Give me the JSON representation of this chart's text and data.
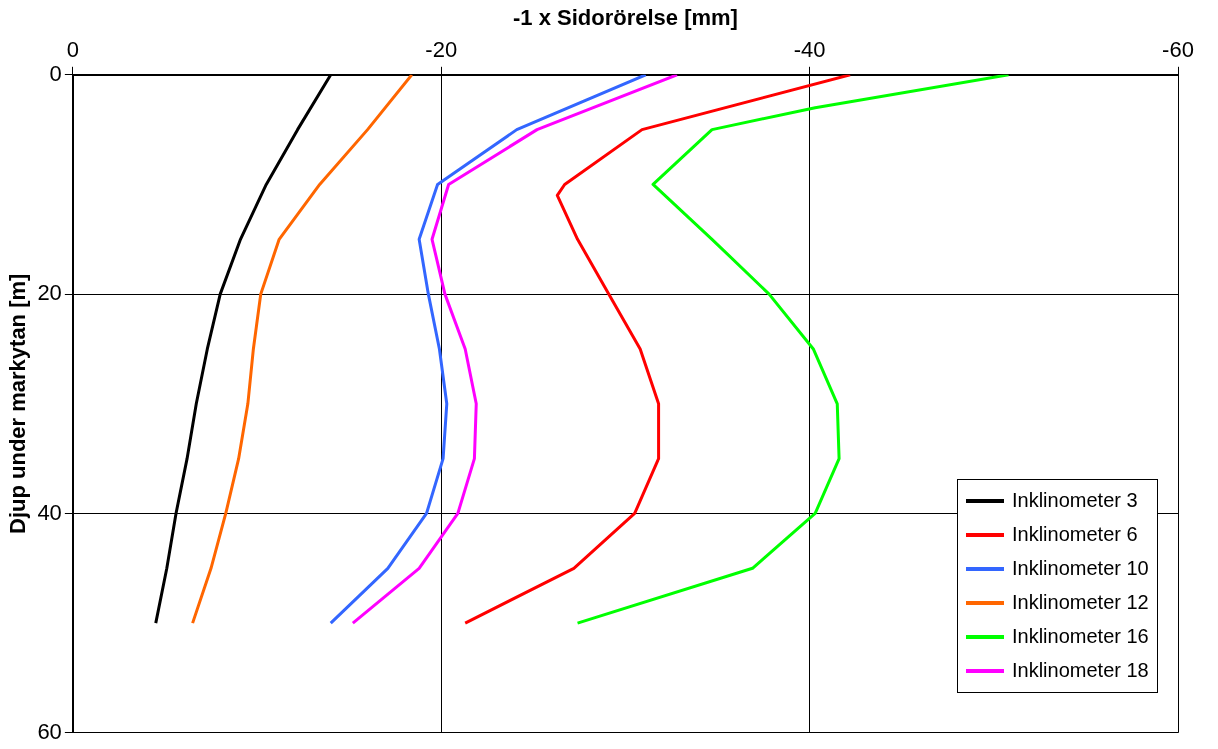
{
  "chart_data": {
    "type": "line",
    "xlabel": "-1 x Sidorörelse [mm]",
    "ylabel": "Djup under markytan [m]",
    "xlim": [
      0,
      -60
    ],
    "xticks": [
      0,
      -20,
      -40,
      -60
    ],
    "ylim": [
      60,
      0
    ],
    "yticks": [
      0,
      20,
      40,
      60
    ],
    "grid": true,
    "legend": "bottom right",
    "marker": "none",
    "line_style": "solid",
    "series": [
      {
        "name": "Inklinometer 3",
        "color": "#000000",
        "x": [
          -14.0,
          -12.2,
          -10.5,
          -9.1,
          -8.0,
          -7.3,
          -6.7,
          -6.2,
          -5.6,
          -5.1,
          -4.5
        ],
        "values": [
          0,
          5,
          10,
          15,
          20,
          25,
          30,
          35,
          40,
          45,
          50
        ]
      },
      {
        "name": "Inklinometer 6",
        "color": "#ff0000",
        "x": [
          -42.2,
          -30.9,
          -26.7,
          -26.3,
          -27.4,
          -29.1,
          -30.8,
          -31.8,
          -31.8,
          -30.5,
          -27.2,
          -21.3
        ],
        "values": [
          0,
          5,
          10,
          11,
          15,
          20,
          25,
          30,
          35,
          40,
          45,
          50
        ]
      },
      {
        "name": "Inklinometer 10",
        "color": "#3366ff",
        "x": [
          -31.1,
          -24.1,
          -19.8,
          -18.8,
          -19.3,
          -19.9,
          -20.3,
          -20.1,
          -19.2,
          -17.1,
          -14.0
        ],
        "values": [
          0,
          5,
          10,
          15,
          20,
          25,
          30,
          35,
          40,
          45,
          50
        ]
      },
      {
        "name": "Inklinometer 12",
        "color": "#ff6600",
        "x": [
          -18.4,
          -16.0,
          -13.4,
          -11.2,
          -10.2,
          -9.8,
          -9.5,
          -9.0,
          -8.3,
          -7.5,
          -6.5
        ],
        "values": [
          0,
          5,
          10,
          15,
          20,
          25,
          30,
          35,
          40,
          45,
          50
        ]
      },
      {
        "name": "Inklinometer 16",
        "color": "#00ff00",
        "x": [
          -50.8,
          -40.3,
          -34.7,
          -31.5,
          -34.7,
          -37.8,
          -40.2,
          -41.5,
          -41.6,
          -40.3,
          -36.9,
          -27.4
        ],
        "values": [
          0,
          3,
          5,
          10,
          15,
          20,
          25,
          30,
          35,
          40,
          45,
          50
        ]
      },
      {
        "name": "Inklinometer 18",
        "color": "#ff00ff",
        "x": [
          -32.8,
          -25.2,
          -20.4,
          -19.5,
          -20.2,
          -21.3,
          -21.9,
          -21.8,
          -20.9,
          -18.8,
          -15.2
        ],
        "values": [
          0,
          5,
          10,
          15,
          20,
          25,
          30,
          35,
          40,
          45,
          50
        ]
      }
    ]
  }
}
